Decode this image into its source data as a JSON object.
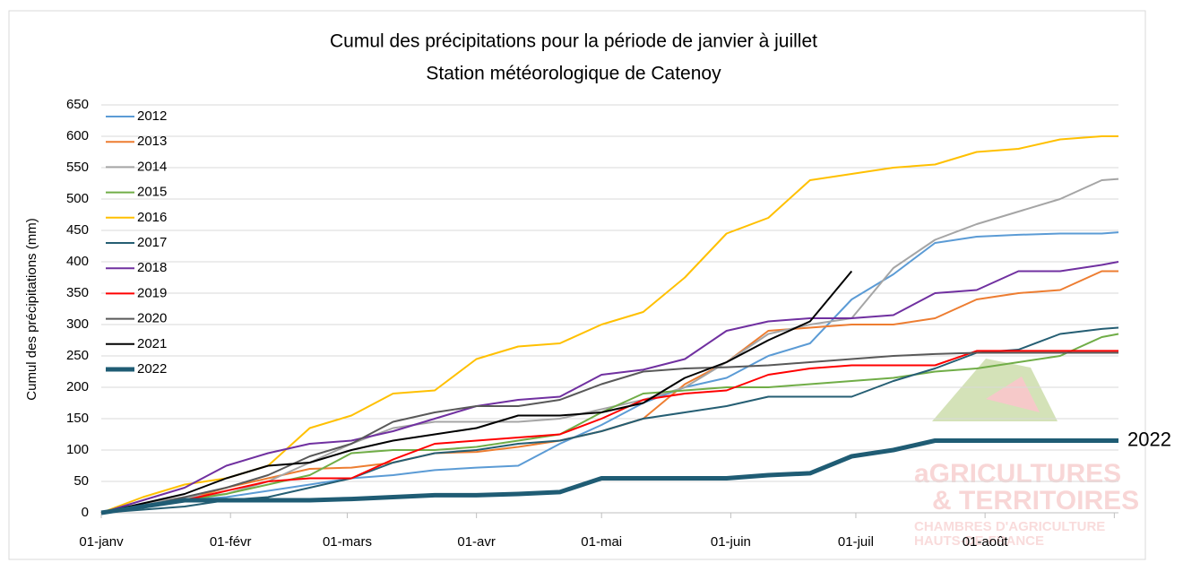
{
  "chart_data": {
    "type": "line",
    "title": "Cumul des précipitations pour la période de janvier à  juillet",
    "subtitle": "Station météorologique de Catenoy",
    "y_label": "Cumul des précipitations (mm)",
    "x": [
      0,
      10,
      20,
      30,
      40,
      50,
      60,
      70,
      80,
      90,
      100,
      110,
      120,
      130,
      140,
      150,
      160,
      170,
      180,
      190,
      200,
      210,
      220,
      230,
      240,
      244
    ],
    "xlim": [
      0,
      244
    ],
    "xticks": [
      {
        "value": 0,
        "label": "01-janv"
      },
      {
        "value": 31,
        "label": "01-févr"
      },
      {
        "value": 59,
        "label": "01-mars"
      },
      {
        "value": 90,
        "label": "01-avr"
      },
      {
        "value": 120,
        "label": "01-mai"
      },
      {
        "value": 151,
        "label": "01-juin"
      },
      {
        "value": 181,
        "label": "01-juil"
      },
      {
        "value": 212,
        "label": "01-août"
      },
      {
        "value": 243,
        "label": ""
      }
    ],
    "ylim": [
      0,
      650
    ],
    "yticks": [
      0,
      50,
      100,
      150,
      200,
      250,
      300,
      350,
      400,
      450,
      500,
      550,
      600,
      650
    ],
    "grid": true,
    "legend": "left",
    "series": [
      {
        "name": "2012",
        "color": "#5b9bd5",
        "line_width": 2,
        "values": [
          0,
          10,
          20,
          25,
          35,
          45,
          55,
          60,
          68,
          72,
          75,
          110,
          140,
          175,
          200,
          215,
          250,
          270,
          340,
          380,
          430,
          440,
          443,
          445,
          445,
          447
        ]
      },
      {
        "name": "2013",
        "color": "#ed7d31",
        "line_width": 2,
        "values": [
          0,
          10,
          20,
          40,
          55,
          70,
          72,
          80,
          95,
          97,
          105,
          115,
          130,
          150,
          205,
          240,
          290,
          295,
          300,
          300,
          310,
          340,
          350,
          355,
          385,
          385
        ]
      },
      {
        "name": "2014",
        "color": "#a5a5a5",
        "line_width": 2,
        "values": [
          0,
          15,
          25,
          30,
          50,
          80,
          110,
          135,
          145,
          145,
          145,
          150,
          165,
          180,
          200,
          240,
          285,
          300,
          310,
          390,
          435,
          460,
          480,
          500,
          530,
          532
        ]
      },
      {
        "name": "2015",
        "color": "#70ad47",
        "line_width": 2,
        "values": [
          0,
          10,
          20,
          30,
          45,
          60,
          95,
          100,
          100,
          105,
          115,
          125,
          160,
          190,
          195,
          200,
          200,
          205,
          210,
          215,
          225,
          230,
          240,
          250,
          280,
          285
        ]
      },
      {
        "name": "2016",
        "color": "#ffc000",
        "line_width": 2,
        "values": [
          0,
          25,
          45,
          55,
          75,
          135,
          155,
          190,
          195,
          245,
          265,
          270,
          300,
          320,
          375,
          445,
          470,
          530,
          540,
          550,
          555,
          575,
          580,
          595,
          600,
          600
        ]
      },
      {
        "name": "2017",
        "color": "#255e73",
        "line_width": 2,
        "values": [
          0,
          5,
          10,
          20,
          25,
          40,
          55,
          80,
          95,
          100,
          110,
          115,
          130,
          150,
          160,
          170,
          185,
          185,
          185,
          210,
          230,
          255,
          260,
          285,
          293,
          295
        ]
      },
      {
        "name": "2018",
        "color": "#7030a0",
        "line_width": 2,
        "values": [
          0,
          20,
          40,
          75,
          95,
          110,
          115,
          130,
          150,
          170,
          180,
          185,
          220,
          228,
          245,
          290,
          305,
          310,
          310,
          315,
          350,
          355,
          385,
          385,
          395,
          400
        ]
      },
      {
        "name": "2019",
        "color": "#ff0000",
        "line_width": 2,
        "values": [
          0,
          10,
          20,
          35,
          50,
          55,
          55,
          85,
          110,
          115,
          120,
          125,
          150,
          180,
          190,
          195,
          220,
          230,
          235,
          235,
          235,
          258,
          258,
          258,
          258,
          258
        ]
      },
      {
        "name": "2020",
        "color": "#595959",
        "line_width": 2,
        "values": [
          0,
          10,
          25,
          40,
          60,
          90,
          110,
          145,
          160,
          170,
          170,
          180,
          205,
          225,
          230,
          232,
          235,
          240,
          245,
          250,
          253,
          255,
          255,
          255,
          255,
          255
        ]
      },
      {
        "name": "2021",
        "color": "#000000",
        "line_width": 2,
        "values": [
          0,
          15,
          30,
          55,
          75,
          80,
          100,
          115,
          125,
          135,
          155,
          155,
          160,
          175,
          215,
          240,
          275,
          305,
          385,
          null,
          null,
          null,
          null,
          null,
          null,
          null
        ]
      },
      {
        "name": "2022",
        "color": "#1f5c74",
        "line_width": 5,
        "values": [
          0,
          10,
          20,
          20,
          20,
          20,
          22,
          25,
          28,
          28,
          30,
          33,
          55,
          55,
          55,
          55,
          60,
          63,
          90,
          100,
          115,
          115,
          115,
          115,
          115,
          115
        ]
      }
    ],
    "annotations": [
      "2022"
    ],
    "watermark": [
      "aGRICULTURES",
      "& TERRITOIRES",
      "CHAMBRES D'AGRICULTURE",
      "HAUTS-DE-FRANCE"
    ]
  }
}
